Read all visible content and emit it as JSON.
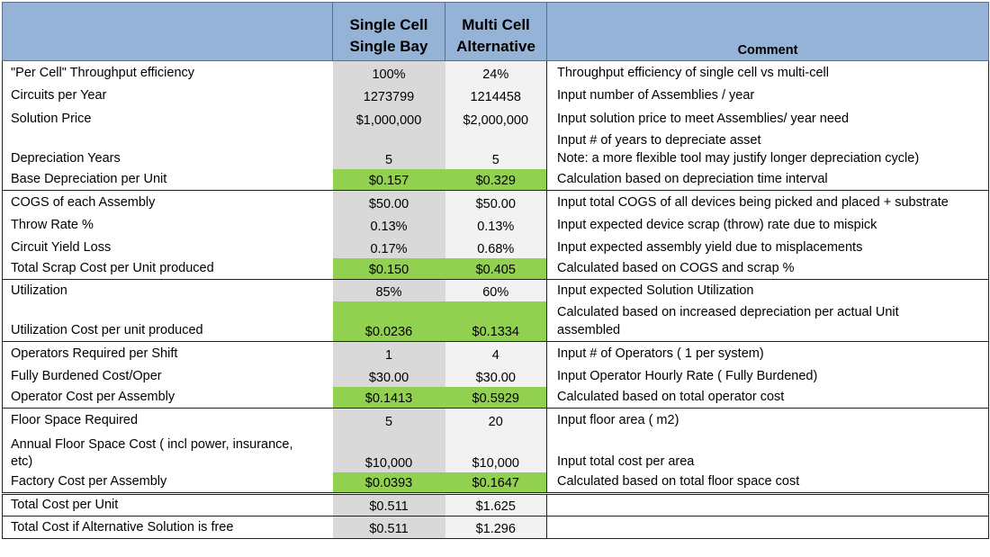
{
  "header": {
    "col1_line1": "Single Cell",
    "col1_line2": "Single Bay",
    "col2_line1": "Multi Cell",
    "col2_line2": "Alternative",
    "comment": "Comment"
  },
  "colors": {
    "header_bg": "#95b3d7",
    "highlight": "#92d050",
    "col1_bg": "#d9d9d9",
    "col2_bg": "#f2f2f2"
  },
  "rows": [
    {
      "label": "\"Per Cell\" Throughput efficiency",
      "v1": "100%",
      "v2": "24%",
      "comment": "Throughput efficiency of single cell vs multi-cell"
    },
    {
      "label": "Circuits per Year",
      "v1": "1273799",
      "v2": "1214458",
      "comment": "Input number of Assemblies / year"
    },
    {
      "label": "Solution Price",
      "v1": "$1,000,000",
      "v2": "$2,000,000",
      "comment": "Input solution price to meet Assemblies/ year need"
    },
    {
      "label": "Depreciation Years",
      "v1": "5",
      "v2": "5",
      "comment": "Input # of years to depreciate asset\nNote: a more flexible tool may justify longer depreciation cycle)"
    },
    {
      "label": "Base Depreciation per Unit",
      "v1": "$0.157",
      "v2": "$0.329",
      "comment": "Calculation based on depreciation time interval"
    },
    {
      "label": "COGS of each Assembly",
      "v1": "$50.00",
      "v2": "$50.00",
      "comment": "Input total COGS of all devices being picked and placed + substrate"
    },
    {
      "label": "Throw Rate %",
      "v1": "0.13%",
      "v2": "0.13%",
      "comment": "Input expected device scrap (throw) rate due to mispick"
    },
    {
      "label": "Circuit Yield Loss",
      "v1": "0.17%",
      "v2": "0.68%",
      "comment": "Input expected assembly yield due to misplacements"
    },
    {
      "label": "Total Scrap Cost per Unit produced",
      "v1": "$0.150",
      "v2": "$0.405",
      "comment": "Calculated based on COGS and scrap %"
    },
    {
      "label": "Utilization",
      "v1": "85%",
      "v2": "60%",
      "comment": "Input expected Solution Utilization"
    },
    {
      "label": "Utilization Cost per unit produced",
      "v1": "$0.0236",
      "v2": "$0.1334",
      "comment": "Calculated based on increased depreciation per actual Unit\nassembled"
    },
    {
      "label": "Operators Required per Shift",
      "v1": "1",
      "v2": "4",
      "comment": "Input # of Operators ( 1 per system)"
    },
    {
      "label": "Fully Burdened Cost/Oper",
      "v1": "$30.00",
      "v2": "$30.00",
      "comment": "Input Operator Hourly Rate ( Fully Burdened)"
    },
    {
      "label": "Operator Cost per Assembly",
      "v1": "$0.1413",
      "v2": "$0.5929",
      "comment": "Calculated based on total operator cost"
    },
    {
      "label": "Floor Space Required",
      "v1": "5",
      "v2": "20",
      "comment": "Input floor area ( m2)"
    },
    {
      "label": "Annual Floor Space Cost ( incl power, insurance,\netc)",
      "v1": "$10,000",
      "v2": "$10,000",
      "comment": "Input total cost per area"
    },
    {
      "label": "Factory Cost per Assembly",
      "v1": "$0.0393",
      "v2": "$0.1647",
      "comment": "Calculated based on total floor space cost"
    },
    {
      "label": "Total Cost per Unit",
      "v1": "$0.511",
      "v2": "$1.625",
      "comment": ""
    },
    {
      "label": "Total Cost if Alternative Solution is free",
      "v1": "$0.511",
      "v2": "$1.296",
      "comment": ""
    }
  ]
}
